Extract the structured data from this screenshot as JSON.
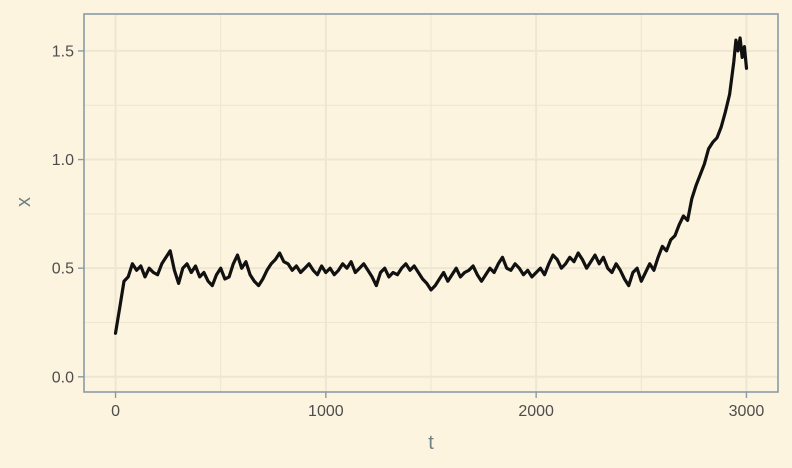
{
  "chart_data": {
    "type": "line",
    "title": "",
    "xlabel": "t",
    "ylabel": "x",
    "xlim": [
      -150,
      3150
    ],
    "ylim": [
      -0.07,
      1.67
    ],
    "x_ticks": [
      0,
      1000,
      2000,
      3000
    ],
    "x_tick_labels": [
      "0",
      "1000",
      "2000",
      "3000"
    ],
    "y_ticks": [
      0.0,
      0.5,
      1.0,
      1.5
    ],
    "y_tick_labels": [
      "0.0",
      "0.5",
      "1.0",
      "1.5"
    ],
    "grid": true,
    "legend": "none",
    "colors": {
      "background": "#fdf4df",
      "grid": "#ece6d2",
      "frame": "#8a9ba5",
      "line": "#111111"
    },
    "series": [
      {
        "values": [
          [
            0,
            0.2
          ],
          [
            20,
            0.32
          ],
          [
            40,
            0.44
          ],
          [
            60,
            0.46
          ],
          [
            80,
            0.52
          ],
          [
            100,
            0.49
          ],
          [
            120,
            0.51
          ],
          [
            140,
            0.46
          ],
          [
            160,
            0.5
          ],
          [
            180,
            0.48
          ],
          [
            200,
            0.47
          ],
          [
            220,
            0.52
          ],
          [
            240,
            0.55
          ],
          [
            260,
            0.58
          ],
          [
            280,
            0.49
          ],
          [
            300,
            0.43
          ],
          [
            320,
            0.5
          ],
          [
            340,
            0.52
          ],
          [
            360,
            0.48
          ],
          [
            380,
            0.51
          ],
          [
            400,
            0.46
          ],
          [
            420,
            0.48
          ],
          [
            440,
            0.44
          ],
          [
            460,
            0.42
          ],
          [
            480,
            0.47
          ],
          [
            500,
            0.5
          ],
          [
            520,
            0.45
          ],
          [
            540,
            0.46
          ],
          [
            560,
            0.52
          ],
          [
            580,
            0.56
          ],
          [
            600,
            0.5
          ],
          [
            620,
            0.53
          ],
          [
            640,
            0.47
          ],
          [
            660,
            0.44
          ],
          [
            680,
            0.42
          ],
          [
            700,
            0.45
          ],
          [
            720,
            0.49
          ],
          [
            740,
            0.52
          ],
          [
            760,
            0.54
          ],
          [
            780,
            0.57
          ],
          [
            800,
            0.53
          ],
          [
            820,
            0.52
          ],
          [
            840,
            0.49
          ],
          [
            860,
            0.51
          ],
          [
            880,
            0.48
          ],
          [
            900,
            0.5
          ],
          [
            920,
            0.52
          ],
          [
            940,
            0.49
          ],
          [
            960,
            0.47
          ],
          [
            980,
            0.51
          ],
          [
            1000,
            0.48
          ],
          [
            1020,
            0.5
          ],
          [
            1040,
            0.47
          ],
          [
            1060,
            0.49
          ],
          [
            1080,
            0.52
          ],
          [
            1100,
            0.5
          ],
          [
            1120,
            0.53
          ],
          [
            1140,
            0.48
          ],
          [
            1160,
            0.5
          ],
          [
            1180,
            0.52
          ],
          [
            1200,
            0.49
          ],
          [
            1220,
            0.46
          ],
          [
            1240,
            0.42
          ],
          [
            1260,
            0.48
          ],
          [
            1280,
            0.5
          ],
          [
            1300,
            0.46
          ],
          [
            1320,
            0.48
          ],
          [
            1340,
            0.47
          ],
          [
            1360,
            0.5
          ],
          [
            1380,
            0.52
          ],
          [
            1400,
            0.49
          ],
          [
            1420,
            0.51
          ],
          [
            1440,
            0.48
          ],
          [
            1460,
            0.45
          ],
          [
            1480,
            0.43
          ],
          [
            1500,
            0.4
          ],
          [
            1520,
            0.42
          ],
          [
            1540,
            0.45
          ],
          [
            1560,
            0.48
          ],
          [
            1580,
            0.44
          ],
          [
            1600,
            0.47
          ],
          [
            1620,
            0.5
          ],
          [
            1640,
            0.46
          ],
          [
            1660,
            0.48
          ],
          [
            1680,
            0.49
          ],
          [
            1700,
            0.51
          ],
          [
            1720,
            0.47
          ],
          [
            1740,
            0.44
          ],
          [
            1760,
            0.47
          ],
          [
            1780,
            0.5
          ],
          [
            1800,
            0.48
          ],
          [
            1820,
            0.52
          ],
          [
            1840,
            0.55
          ],
          [
            1860,
            0.5
          ],
          [
            1880,
            0.49
          ],
          [
            1900,
            0.52
          ],
          [
            1920,
            0.5
          ],
          [
            1940,
            0.47
          ],
          [
            1960,
            0.49
          ],
          [
            1980,
            0.46
          ],
          [
            2000,
            0.48
          ],
          [
            2020,
            0.5
          ],
          [
            2040,
            0.47
          ],
          [
            2060,
            0.52
          ],
          [
            2080,
            0.56
          ],
          [
            2100,
            0.54
          ],
          [
            2120,
            0.5
          ],
          [
            2140,
            0.52
          ],
          [
            2160,
            0.55
          ],
          [
            2180,
            0.53
          ],
          [
            2200,
            0.57
          ],
          [
            2220,
            0.54
          ],
          [
            2240,
            0.5
          ],
          [
            2260,
            0.53
          ],
          [
            2280,
            0.56
          ],
          [
            2300,
            0.52
          ],
          [
            2320,
            0.55
          ],
          [
            2340,
            0.5
          ],
          [
            2360,
            0.48
          ],
          [
            2380,
            0.52
          ],
          [
            2400,
            0.49
          ],
          [
            2420,
            0.45
          ],
          [
            2440,
            0.42
          ],
          [
            2460,
            0.48
          ],
          [
            2480,
            0.5
          ],
          [
            2500,
            0.44
          ],
          [
            2520,
            0.48
          ],
          [
            2540,
            0.52
          ],
          [
            2560,
            0.49
          ],
          [
            2580,
            0.55
          ],
          [
            2600,
            0.6
          ],
          [
            2620,
            0.58
          ],
          [
            2640,
            0.63
          ],
          [
            2660,
            0.65
          ],
          [
            2680,
            0.7
          ],
          [
            2700,
            0.74
          ],
          [
            2720,
            0.72
          ],
          [
            2740,
            0.82
          ],
          [
            2760,
            0.88
          ],
          [
            2780,
            0.93
          ],
          [
            2800,
            0.98
          ],
          [
            2820,
            1.05
          ],
          [
            2840,
            1.08
          ],
          [
            2860,
            1.1
          ],
          [
            2880,
            1.15
          ],
          [
            2900,
            1.22
          ],
          [
            2920,
            1.3
          ],
          [
            2940,
            1.45
          ],
          [
            2950,
            1.55
          ],
          [
            2960,
            1.5
          ],
          [
            2970,
            1.56
          ],
          [
            2980,
            1.47
          ],
          [
            2990,
            1.52
          ],
          [
            3000,
            1.42
          ]
        ]
      }
    ]
  }
}
